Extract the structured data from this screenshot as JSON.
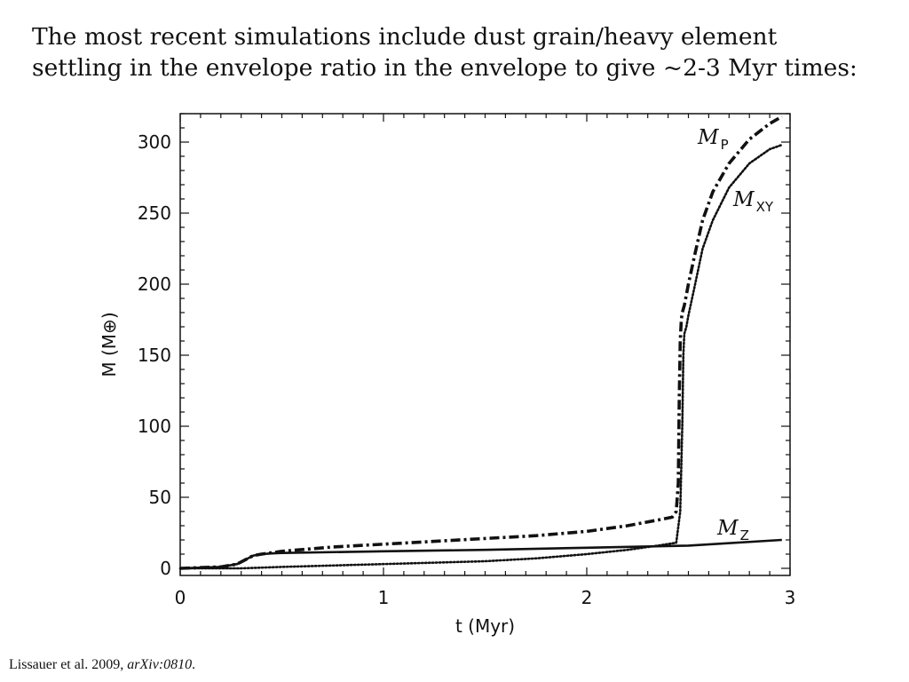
{
  "slide": {
    "line1": "The most recent simulations include dust grain/heavy element",
    "line2": "settling in the envelope ratio in the envelope to give ~2-3 Myr times:"
  },
  "citation": {
    "authors": "Lissauer et al. 2009, ",
    "source": "arXiv:0810",
    "end": "."
  },
  "chart_data": {
    "type": "line",
    "title": "",
    "xlabel": "t (Myr)",
    "ylabel": "M (M⊕)",
    "xlim": [
      0,
      3
    ],
    "ylim": [
      -5,
      320
    ],
    "x_ticks": [
      0,
      1,
      2,
      3
    ],
    "x_tick_labels": [
      "0",
      "1",
      "2",
      "3"
    ],
    "x_minor_step": 0.1,
    "y_ticks": [
      0,
      50,
      100,
      150,
      200,
      250,
      300
    ],
    "y_tick_labels": [
      "0",
      "50",
      "100",
      "150",
      "200",
      "250",
      "300"
    ],
    "y_minor_step": 10,
    "grid": false,
    "legend": "inline labels",
    "series": [
      {
        "name": "M_P",
        "label_main": "M",
        "label_sub": "P",
        "style": "dash-dot",
        "x": [
          0,
          0.2,
          0.28,
          0.32,
          0.36,
          0.4,
          0.45,
          0.5,
          0.75,
          1.0,
          1.25,
          1.5,
          1.75,
          2.0,
          2.2,
          2.35,
          2.42,
          2.44,
          2.45,
          2.455,
          2.46,
          2.465,
          2.47,
          2.48,
          2.5,
          2.53,
          2.57,
          2.62,
          2.7,
          2.8,
          2.9,
          2.96
        ],
        "y": [
          0,
          1,
          3,
          6,
          9,
          10,
          11,
          12,
          15,
          17,
          19,
          21,
          23,
          26,
          30,
          34,
          36,
          40,
          60,
          120,
          160,
          175,
          180,
          185,
          200,
          220,
          245,
          265,
          285,
          302,
          313,
          318
        ]
      },
      {
        "name": "M_XY",
        "label_main": "M",
        "label_sub": "XY",
        "style": "dotted",
        "x": [
          0,
          0.2,
          0.3,
          0.4,
          0.5,
          0.75,
          1.0,
          1.25,
          1.5,
          1.75,
          2.0,
          2.2,
          2.35,
          2.44,
          2.46,
          2.47,
          2.475,
          2.48,
          2.49,
          2.5,
          2.53,
          2.57,
          2.62,
          2.7,
          2.8,
          2.9,
          2.96
        ],
        "y": [
          0,
          0,
          0,
          0.5,
          1,
          2,
          3,
          4,
          5,
          7,
          10,
          13,
          16,
          18,
          40,
          100,
          150,
          165,
          170,
          178,
          198,
          225,
          245,
          268,
          285,
          295,
          298
        ]
      },
      {
        "name": "M_Z",
        "label_main": "M",
        "label_sub": "Z",
        "style": "solid",
        "x": [
          0,
          0.2,
          0.28,
          0.32,
          0.36,
          0.4,
          0.45,
          0.5,
          1.0,
          1.5,
          2.0,
          2.5,
          2.96
        ],
        "y": [
          0,
          1,
          3,
          6,
          9,
          10,
          10.5,
          10.8,
          12,
          13,
          14.5,
          16,
          20
        ]
      }
    ]
  }
}
